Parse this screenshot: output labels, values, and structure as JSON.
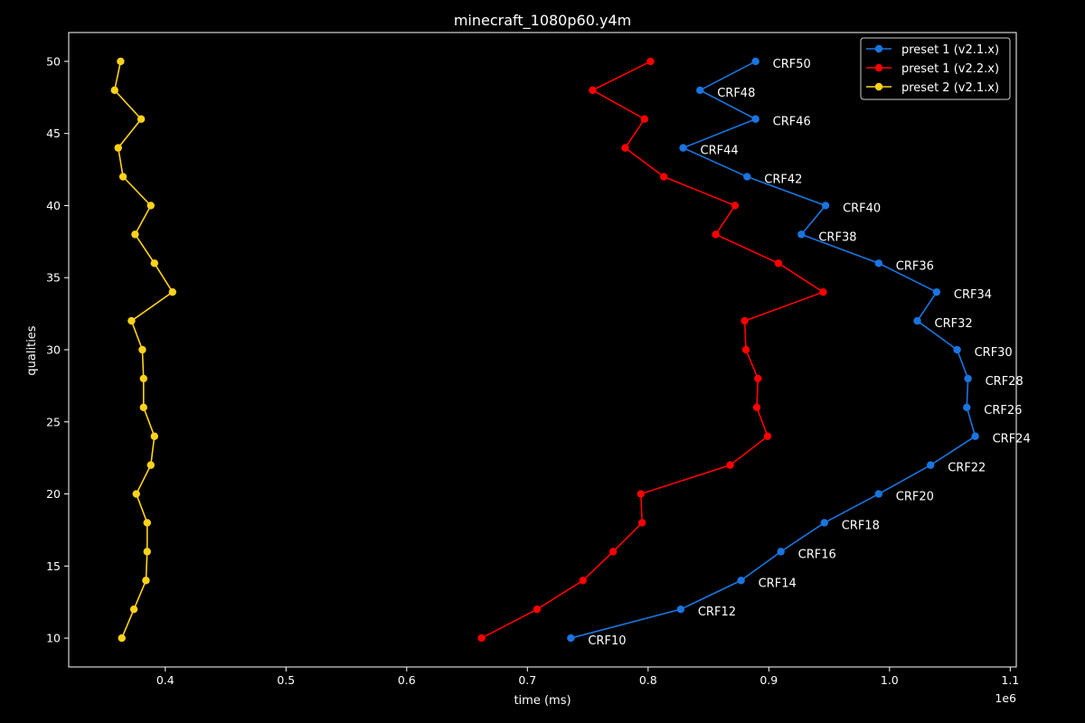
{
  "chart_data": {
    "type": "line",
    "title": "minecraft_1080p60.y4m",
    "xlabel": "time (ms)",
    "ylabel": "qualities",
    "x_offset_text": "1e6",
    "xlim": [
      0.32,
      1.105
    ],
    "ylim": [
      8,
      52
    ],
    "x_ticks": [
      0.4,
      0.5,
      0.6,
      0.7,
      0.8,
      0.9,
      1.0,
      1.1
    ],
    "x_tick_labels": [
      "0.4",
      "0.5",
      "0.6",
      "0.7",
      "0.8",
      "0.9",
      "1.0",
      "1.1"
    ],
    "y_ticks": [
      10,
      15,
      20,
      25,
      30,
      35,
      40,
      45,
      50
    ],
    "y_tick_labels": [
      "10",
      "15",
      "20",
      "25",
      "30",
      "35",
      "40",
      "45",
      "50"
    ],
    "grid": false,
    "legend_position": "top-right",
    "series": [
      {
        "name": "preset 1 (v2.1.x)",
        "color": "#1a75e0",
        "points": [
          {
            "x": 0.736,
            "y": 10
          },
          {
            "x": 0.827,
            "y": 12
          },
          {
            "x": 0.877,
            "y": 14
          },
          {
            "x": 0.91,
            "y": 16
          },
          {
            "x": 0.946,
            "y": 18
          },
          {
            "x": 0.991,
            "y": 20
          },
          {
            "x": 1.034,
            "y": 22
          },
          {
            "x": 1.071,
            "y": 24
          },
          {
            "x": 1.064,
            "y": 26
          },
          {
            "x": 1.065,
            "y": 28
          },
          {
            "x": 1.056,
            "y": 30
          },
          {
            "x": 1.023,
            "y": 32
          },
          {
            "x": 1.039,
            "y": 34
          },
          {
            "x": 0.991,
            "y": 36
          },
          {
            "x": 0.927,
            "y": 38
          },
          {
            "x": 0.947,
            "y": 40
          },
          {
            "x": 0.882,
            "y": 42
          },
          {
            "x": 0.829,
            "y": 44
          },
          {
            "x": 0.889,
            "y": 46
          },
          {
            "x": 0.843,
            "y": 48
          },
          {
            "x": 0.889,
            "y": 50
          }
        ],
        "labels": [
          "CRF10",
          "CRF12",
          "CRF14",
          "CRF16",
          "CRF18",
          "CRF20",
          "CRF22",
          "CRF24",
          "CRF26",
          "CRF28",
          "CRF30",
          "CRF32",
          "CRF34",
          "CRF36",
          "CRF38",
          "CRF40",
          "CRF42",
          "CRF44",
          "CRF46",
          "CRF48",
          "CRF50"
        ]
      },
      {
        "name": "preset 1 (v2.2.x)",
        "color": "#ff0000",
        "points": [
          {
            "x": 0.662,
            "y": 10
          },
          {
            "x": 0.708,
            "y": 12
          },
          {
            "x": 0.746,
            "y": 14
          },
          {
            "x": 0.771,
            "y": 16
          },
          {
            "x": 0.795,
            "y": 18
          },
          {
            "x": 0.794,
            "y": 20
          },
          {
            "x": 0.868,
            "y": 22
          },
          {
            "x": 0.899,
            "y": 24
          },
          {
            "x": 0.89,
            "y": 26
          },
          {
            "x": 0.891,
            "y": 28
          },
          {
            "x": 0.881,
            "y": 30
          },
          {
            "x": 0.88,
            "y": 32
          },
          {
            "x": 0.945,
            "y": 34
          },
          {
            "x": 0.908,
            "y": 36
          },
          {
            "x": 0.856,
            "y": 38
          },
          {
            "x": 0.872,
            "y": 40
          },
          {
            "x": 0.813,
            "y": 42
          },
          {
            "x": 0.781,
            "y": 44
          },
          {
            "x": 0.797,
            "y": 46
          },
          {
            "x": 0.754,
            "y": 48
          },
          {
            "x": 0.802,
            "y": 50
          }
        ]
      },
      {
        "name": "preset 2 (v2.1.x)",
        "color": "#ffd21a",
        "points": [
          {
            "x": 0.364,
            "y": 10
          },
          {
            "x": 0.374,
            "y": 12
          },
          {
            "x": 0.384,
            "y": 14
          },
          {
            "x": 0.385,
            "y": 16
          },
          {
            "x": 0.385,
            "y": 18
          },
          {
            "x": 0.376,
            "y": 20
          },
          {
            "x": 0.388,
            "y": 22
          },
          {
            "x": 0.391,
            "y": 24
          },
          {
            "x": 0.382,
            "y": 26
          },
          {
            "x": 0.382,
            "y": 28
          },
          {
            "x": 0.381,
            "y": 30
          },
          {
            "x": 0.372,
            "y": 32
          },
          {
            "x": 0.406,
            "y": 34
          },
          {
            "x": 0.391,
            "y": 36
          },
          {
            "x": 0.375,
            "y": 38
          },
          {
            "x": 0.388,
            "y": 40
          },
          {
            "x": 0.365,
            "y": 42
          },
          {
            "x": 0.361,
            "y": 44
          },
          {
            "x": 0.38,
            "y": 46
          },
          {
            "x": 0.358,
            "y": 48
          },
          {
            "x": 0.363,
            "y": 50
          }
        ]
      }
    ]
  }
}
